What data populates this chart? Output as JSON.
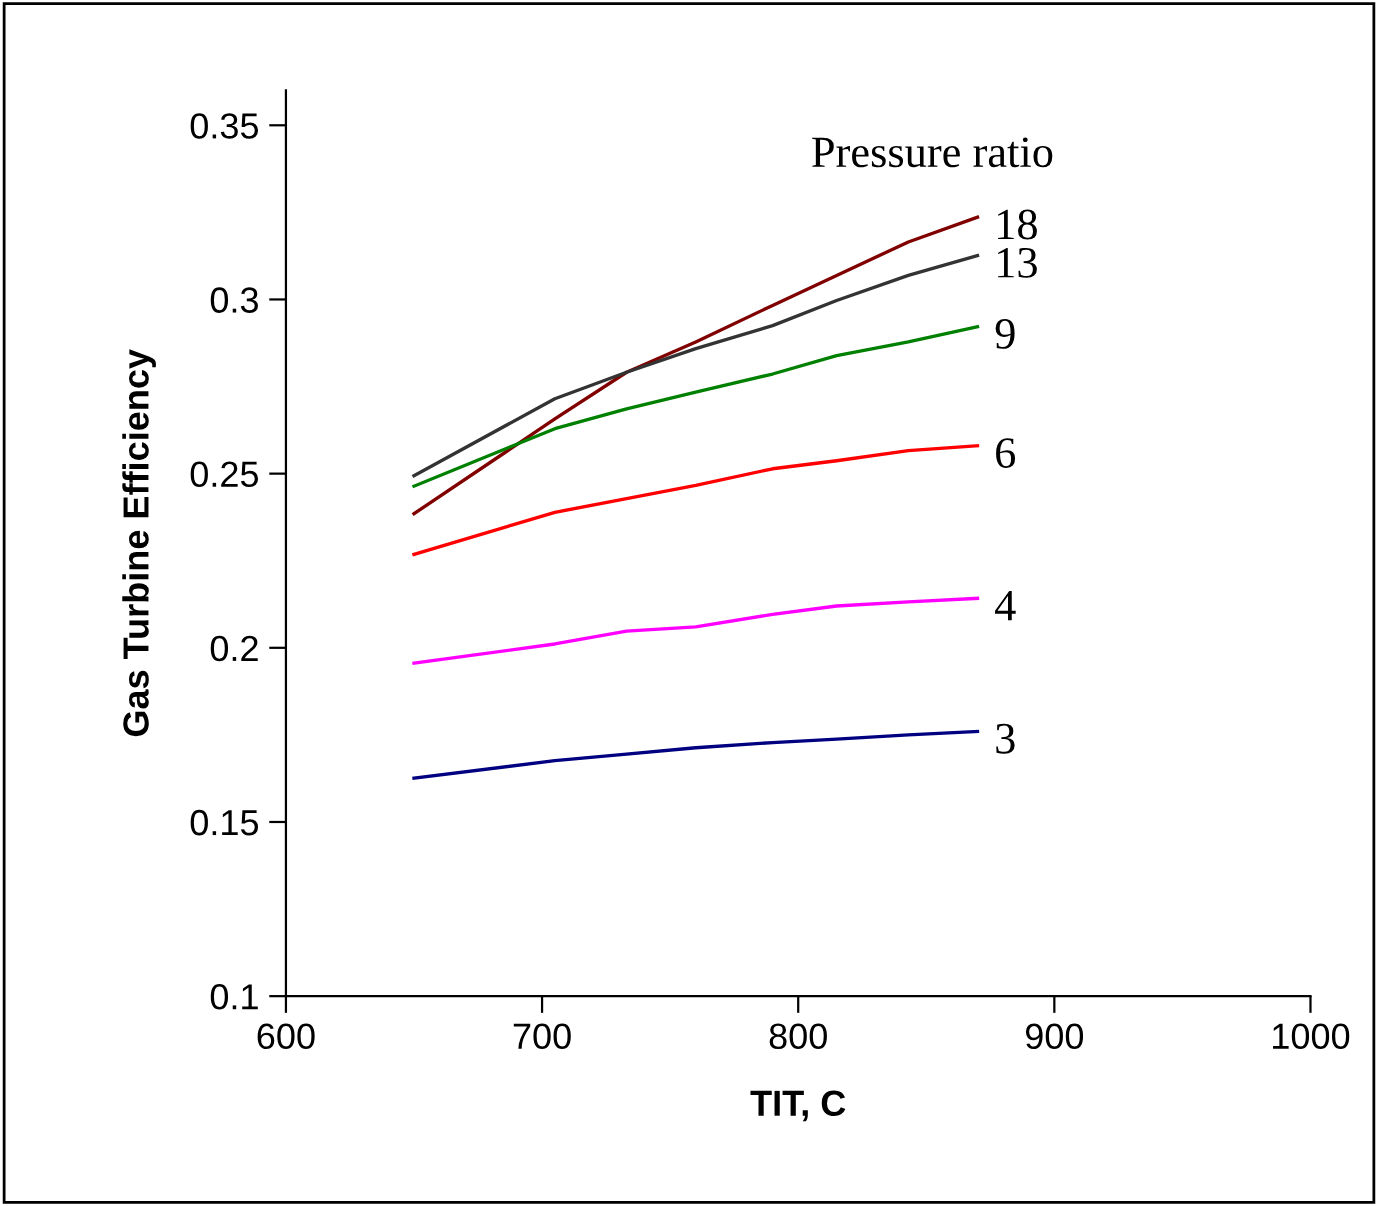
{
  "chart_data": {
    "type": "line",
    "xlabel": "TIT, C",
    "ylabel": "Gas Turbine Efficiency",
    "legend_title": "Pressure ratio",
    "x": [
      650,
      705,
      733,
      760,
      790,
      815,
      843,
      870
    ],
    "series": [
      {
        "name": "18",
        "color": "#800000",
        "values": [
          0.2385,
          0.2657,
          0.2791,
          0.2878,
          0.2983,
          0.3069,
          0.3165,
          0.3236
        ]
      },
      {
        "name": "13",
        "color": "#333333",
        "values": [
          0.2494,
          0.2715,
          0.2791,
          0.2859,
          0.2925,
          0.2997,
          0.3069,
          0.3126
        ]
      },
      {
        "name": "9",
        "color": "#008000",
        "values": [
          0.2464,
          0.2629,
          0.2686,
          0.2734,
          0.2786,
          0.2839,
          0.2878,
          0.2922
        ]
      },
      {
        "name": "6",
        "color": "#ff0000",
        "values": [
          0.2268,
          0.2389,
          0.2428,
          0.2466,
          0.2514,
          0.2537,
          0.2566,
          0.258
        ]
      },
      {
        "name": "4",
        "color": "#ff00ff",
        "values": [
          0.1956,
          0.2011,
          0.2048,
          0.206,
          0.2096,
          0.212,
          0.2132,
          0.2142
        ]
      },
      {
        "name": "3",
        "color": "#000080",
        "values": [
          0.1626,
          0.1676,
          0.1695,
          0.1713,
          0.1728,
          0.1738,
          0.175,
          0.176
        ]
      }
    ],
    "xlim": [
      600,
      1000
    ],
    "xticks": [
      600,
      700,
      800,
      900,
      1000
    ],
    "ylim": [
      0.1,
      0.36
    ],
    "yticks": [
      0.1,
      0.15,
      0.2,
      0.25,
      0.3,
      0.35
    ],
    "grid": false,
    "legend": false,
    "marker": "none",
    "line_style": "solid"
  }
}
